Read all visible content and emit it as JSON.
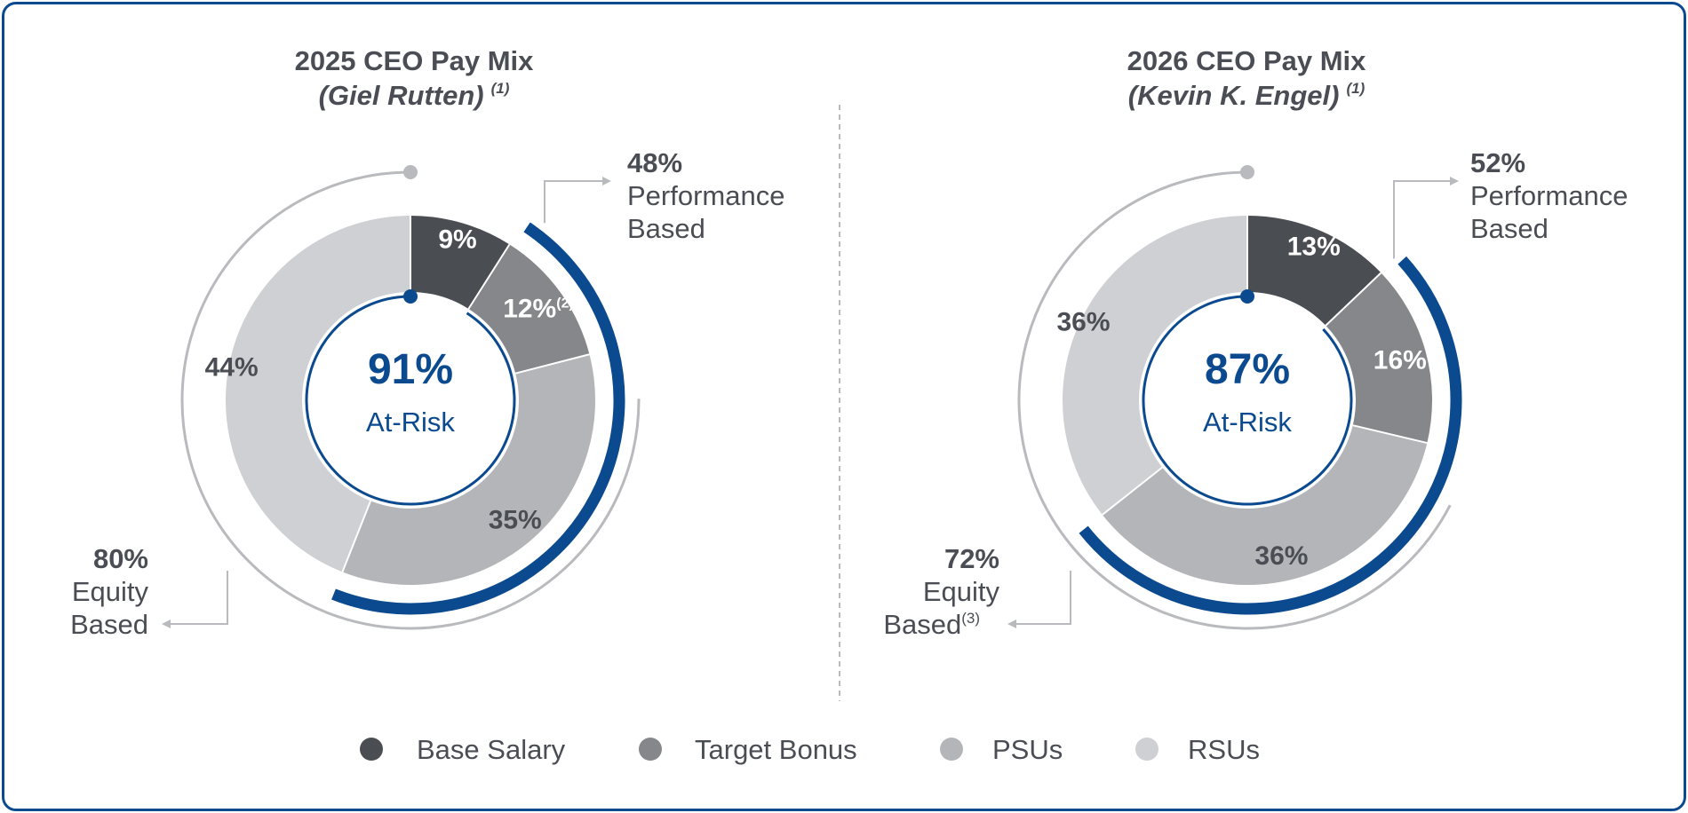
{
  "legend": [
    {
      "label": "Base Salary",
      "color": "#4a4d52"
    },
    {
      "label": "Target Bonus",
      "color": "#86878b"
    },
    {
      "label": "PSUs",
      "color": "#b4b5b8"
    },
    {
      "label": "RSUs",
      "color": "#cfd0d3"
    }
  ],
  "accent": "#0b4a8f",
  "arc_gray": "#b9babd",
  "chart_data": [
    {
      "type": "pie",
      "title": "2025 CEO Pay Mix",
      "subtitle": "(Giel Rutten)",
      "subtitle_note": "(1)",
      "categories": [
        "Base Salary",
        "Target Bonus",
        "PSUs",
        "RSUs"
      ],
      "values": [
        9,
        12,
        35,
        44
      ],
      "labels": [
        "9%",
        "12%",
        "35%",
        "44%"
      ],
      "label_notes": [
        "",
        "(2)",
        "",
        ""
      ],
      "center_value": "91%",
      "center_label": "At-Risk",
      "performance_based": {
        "value": "48%",
        "line1": "Performance",
        "line2": "Based",
        "note": ""
      },
      "equity_based": {
        "value": "80%",
        "line1": "Equity",
        "line2": "Based",
        "note": ""
      }
    },
    {
      "type": "pie",
      "title": "2026 CEO Pay Mix",
      "subtitle": "(Kevin K. Engel)",
      "subtitle_note": "(1)",
      "categories": [
        "Base Salary",
        "Target Bonus",
        "PSUs",
        "RSUs"
      ],
      "values": [
        13,
        16,
        36,
        36
      ],
      "labels": [
        "13%",
        "16%",
        "36%",
        "36%"
      ],
      "label_notes": [
        "",
        "",
        "",
        ""
      ],
      "center_value": "87%",
      "center_label": "At-Risk",
      "performance_based": {
        "value": "52%",
        "line1": "Performance",
        "line2": "Based",
        "note": ""
      },
      "equity_based": {
        "value": "72%",
        "line1": "Equity",
        "line2": "Based",
        "note": "(3)"
      }
    }
  ]
}
